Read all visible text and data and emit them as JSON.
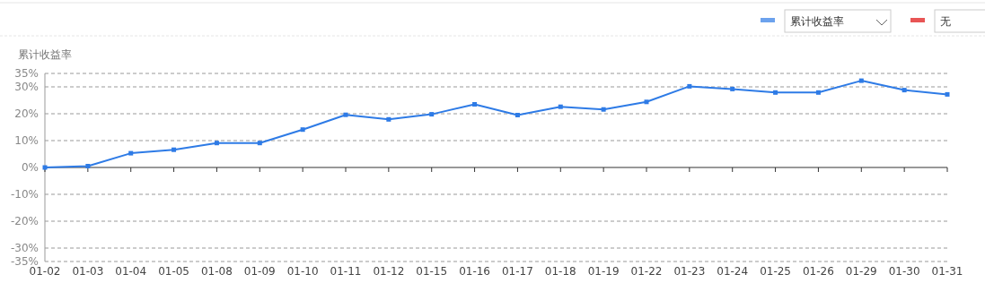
{
  "chart_data": {
    "type": "line",
    "ylabel": "累计收益率",
    "categories": [
      "01-02",
      "01-03",
      "01-04",
      "01-05",
      "01-08",
      "01-09",
      "01-10",
      "01-11",
      "01-12",
      "01-15",
      "01-16",
      "01-17",
      "01-18",
      "01-19",
      "01-22",
      "01-23",
      "01-24",
      "01-25",
      "01-26",
      "01-29",
      "01-30",
      "01-31"
    ],
    "series": [
      {
        "name": "累计收益率",
        "color": "#2e7be6",
        "values": [
          0,
          0.5,
          5.3,
          6.6,
          9.1,
          9.1,
          14.1,
          19.6,
          17.9,
          19.8,
          23.5,
          19.5,
          22.6,
          21.6,
          24.4,
          30.2,
          29.2,
          27.9,
          27.9,
          32.3,
          28.8,
          27.2
        ]
      },
      {
        "name": "无",
        "color": "#e85555",
        "values": [
          null,
          null,
          null,
          null,
          null,
          null,
          null,
          null,
          null,
          null,
          null,
          null,
          null,
          null,
          null,
          null,
          null,
          null,
          null,
          null,
          null,
          null
        ]
      }
    ],
    "ylim": [
      -35,
      35
    ],
    "yticks": [
      {
        "value": -35,
        "label": "-35%"
      },
      {
        "value": -30,
        "label": "-30%"
      },
      {
        "value": -20,
        "label": "-20%"
      },
      {
        "value": -10,
        "label": "-10%"
      },
      {
        "value": 0,
        "label": "0%"
      },
      {
        "value": 10,
        "label": "10%"
      },
      {
        "value": 20,
        "label": "20%"
      },
      {
        "value": 30,
        "label": "30%"
      },
      {
        "value": 35,
        "label": "35%"
      }
    ],
    "grid": "y",
    "legend": "top right",
    "marker": "square",
    "line_style": "solid"
  }
}
